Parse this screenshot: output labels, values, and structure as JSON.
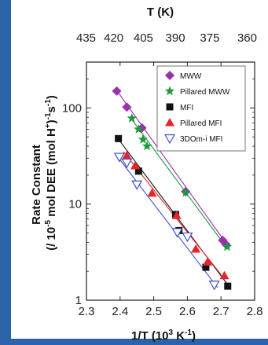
{
  "chart_data": {
    "type": "scatter",
    "x_label": "1/T (10",
    "x_label_sup": "3",
    "x_label_unit": " K",
    "x_label_sup2": "-1",
    "x_label_close": ")",
    "top_axis_label": "T (K)",
    "y_label_line1": "Rate Constant",
    "y_label_line2": "(/ 10",
    "y_label_line2_sup": "-5",
    "y_label_line2_rest": " mol DEE (mol H",
    "y_label_line2_sup2": "+",
    "y_label_line2_end": ")",
    "y_label_line2_sup3": "-1",
    "y_label_line2_tail": "s",
    "y_label_line2_sup4": "-1",
    "y_label_line2_close": ")",
    "xlim": [
      2.3,
      2.8
    ],
    "ylim": [
      1,
      300
    ],
    "y_scale": "log",
    "x_ticks": [
      "2.3",
      "2.4",
      "2.5",
      "2.6",
      "2.7",
      "2.8"
    ],
    "x_tick_values": [
      2.3,
      2.4,
      2.5,
      2.6,
      2.7,
      2.8
    ],
    "y_ticks": [
      "1",
      "10",
      "100"
    ],
    "y_tick_values": [
      1,
      10,
      100
    ],
    "top_ticks": [
      "435",
      "420",
      "405",
      "390",
      "375",
      "360"
    ],
    "top_tick_temps": [
      435,
      420,
      405,
      390,
      375,
      360
    ],
    "legend_position": "top-right",
    "series": [
      {
        "name": "MWW",
        "marker": "diamond",
        "color": "#9b2fae",
        "points": [
          [
            2.39,
            150
          ],
          [
            2.42,
            102
          ],
          [
            2.465,
            62
          ],
          [
            2.595,
            13.5
          ],
          [
            2.705,
            4.2
          ],
          [
            2.715,
            3.8
          ]
        ],
        "fit": [
          [
            2.39,
            152
          ],
          [
            2.72,
            3.7
          ]
        ]
      },
      {
        "name": "Pillared MWW",
        "marker": "star",
        "color": "#1a9a3a",
        "points": [
          [
            2.435,
            78
          ],
          [
            2.455,
            60
          ],
          [
            2.468,
            47
          ],
          [
            2.48,
            40
          ],
          [
            2.595,
            13.2
          ],
          [
            2.718,
            3.6
          ]
        ],
        "fit": [
          [
            2.43,
            80
          ],
          [
            2.72,
            3.4
          ]
        ]
      },
      {
        "name": "MFI",
        "marker": "square",
        "color": "#111111",
        "points": [
          [
            2.395,
            48
          ],
          [
            2.455,
            22
          ],
          [
            2.565,
            7.8
          ],
          [
            2.575,
            5.3
          ],
          [
            2.655,
            2.2
          ],
          [
            2.72,
            1.4
          ]
        ],
        "fit": [
          [
            2.39,
            50
          ],
          [
            2.72,
            1.45
          ]
        ]
      },
      {
        "name": "Pillared MFI",
        "marker": "triangle",
        "color": "#e8242a",
        "points": [
          [
            2.42,
            32
          ],
          [
            2.445,
            25
          ],
          [
            2.495,
            13
          ],
          [
            2.568,
            7.6
          ],
          [
            2.625,
            3.4
          ],
          [
            2.66,
            2.5
          ],
          [
            2.71,
            1.8
          ]
        ],
        "fit": [
          [
            2.41,
            35
          ],
          [
            2.7,
            1.85
          ]
        ]
      },
      {
        "name": "3DOm-i MFI",
        "marker": "triangle-down",
        "color": "#3b4fd0",
        "points": [
          [
            2.398,
            31
          ],
          [
            2.42,
            27
          ],
          [
            2.45,
            16
          ],
          [
            2.57,
            5.1
          ],
          [
            2.6,
            4.6
          ],
          [
            2.68,
            1.45
          ]
        ],
        "fit": [
          [
            2.39,
            32
          ],
          [
            2.69,
            1.35
          ]
        ]
      }
    ]
  }
}
